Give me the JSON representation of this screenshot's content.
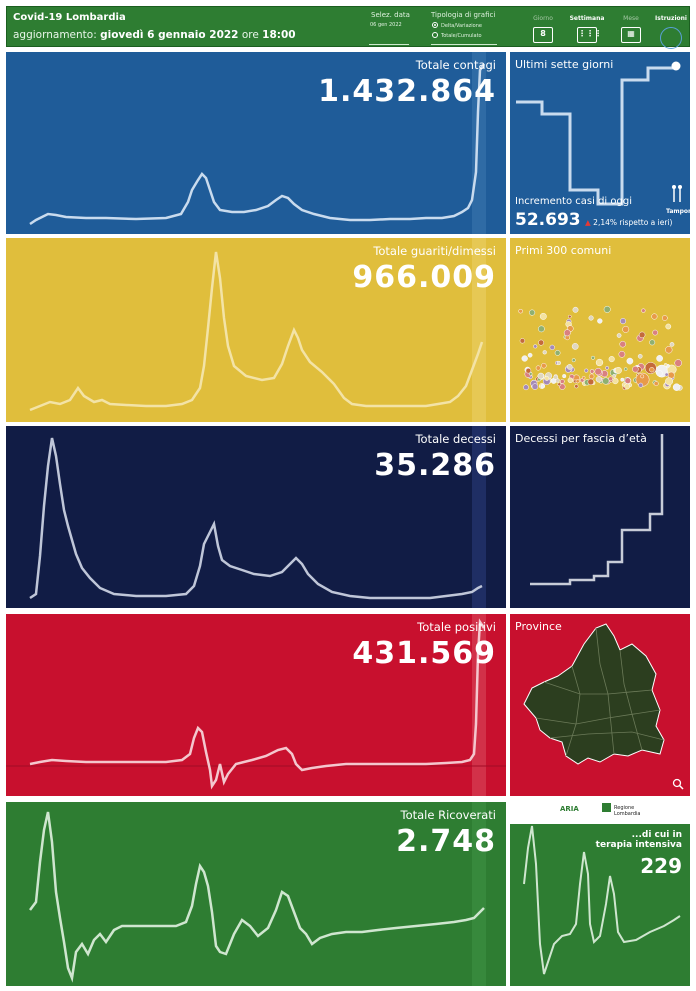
{
  "header": {
    "title": "Covid-19 Lombardia",
    "update_prefix": "aggiornamento:",
    "update_date": "giovedì 6 gennaio 2022",
    "update_mid": "ore",
    "update_time": "18:00",
    "date_selector_label": "Selez. data",
    "date_selector_value": "06 gen 2022",
    "chart_type_label": "Tipologia di grafici",
    "chart_type_options": [
      "Delta/Variazione",
      "Totale/Cumulato"
    ],
    "chart_type_selected": "Delta/Variazione",
    "nav": [
      {
        "label": "Giorno",
        "icon": "calendar-day-icon",
        "value": "8"
      },
      {
        "label": "Settimana",
        "icon": "calendar-week-icon"
      },
      {
        "label": "Mese",
        "icon": "calendar-month-icon"
      },
      {
        "label": "Istruzioni",
        "icon": "info-circle-icon"
      }
    ]
  },
  "panels": {
    "contagi": {
      "title": "Totale contagi",
      "value": "1.432.864",
      "bg": "#1f5c99"
    },
    "guariti": {
      "title": "Totale guariti/dimessi",
      "value": "966.009",
      "bg": "#e0be3c"
    },
    "decessi": {
      "title": "Totale decessi",
      "value": "35.286",
      "bg": "#111c45"
    },
    "positivi": {
      "title": "Totale positivi",
      "value": "431.569",
      "bg": "#c8102e"
    },
    "ricoverati": {
      "title": "Totale Ricoverati",
      "value": "2.748",
      "bg": "#2e7d32"
    }
  },
  "side": {
    "seven_days": {
      "title": "Ultimi sette giorni",
      "increment_label": "Incremento casi di oggi",
      "increment_value": "52.693",
      "change": "2,14% rispetto a  ieri)",
      "tamponi_label": "Tamponi"
    },
    "comuni": {
      "title": "Primi 300 comuni"
    },
    "eta": {
      "title": "Decessi per fascia d’età"
    },
    "province": {
      "title": "Province"
    },
    "terapia": {
      "title": "...di cui in terapia intensiva",
      "value": "229"
    },
    "logos": [
      "ARIA",
      "Regione Lombardia"
    ]
  },
  "colors": {
    "header": "#2e7d32",
    "line": "#dfe8f2"
  }
}
